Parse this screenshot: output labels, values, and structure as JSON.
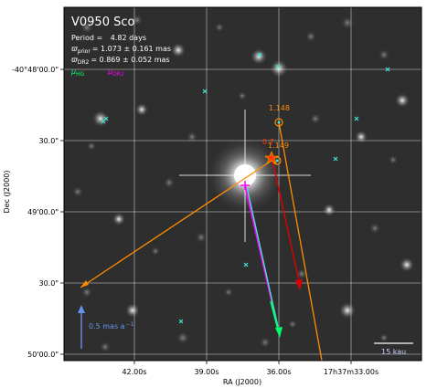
{
  "figure": {
    "title": "V0950 Sco",
    "period_label": "Period =",
    "period_value": "4.82 days",
    "parallax_prior_symbol": "ϖ",
    "parallax_prior_sub": "prior",
    "parallax_prior_value": "= 1.073 ± 0.161 mas",
    "parallax_dr2_symbol": "ϖ",
    "parallax_dr2_sub": "DR2",
    "parallax_dr2_value": "= 0.869 ± 0.052 mas",
    "mu_hg_symbol": "μ",
    "mu_hg_sub": "HG",
    "mu_dr2_symbol": "μ",
    "mu_dr2_sub": "DR2",
    "pm_scale_label": "0.5 mas a",
    "pm_scale_exponent": "−1",
    "size_scale_label": "15 kau",
    "marker_label_1": "1.148",
    "marker_label_2": "0.7",
    "marker_label_3": "1.149",
    "colors": {
      "mu_hg": "#00ff66",
      "mu_dr2": "#ff00ff",
      "companion": "#ff8c00",
      "red_arrow": "#e00000",
      "cyan_arrow": "#40e0d0",
      "field_star": "#40e0d0",
      "scale_arrow": "#6495ed"
    }
  },
  "chart_data": {
    "type": "scatter",
    "xlabel": "RA (J2000)",
    "ylabel": "Dec (J2000)",
    "x_ticks": [
      "42.00s",
      "39.00s",
      "36.00s",
      "17h37m33.00s"
    ],
    "y_ticks": [
      "-40°48'00.0\"",
      "30.0\"",
      "49'00.0\"",
      "30.0\"",
      "50'00.0\""
    ],
    "grid": true
  }
}
